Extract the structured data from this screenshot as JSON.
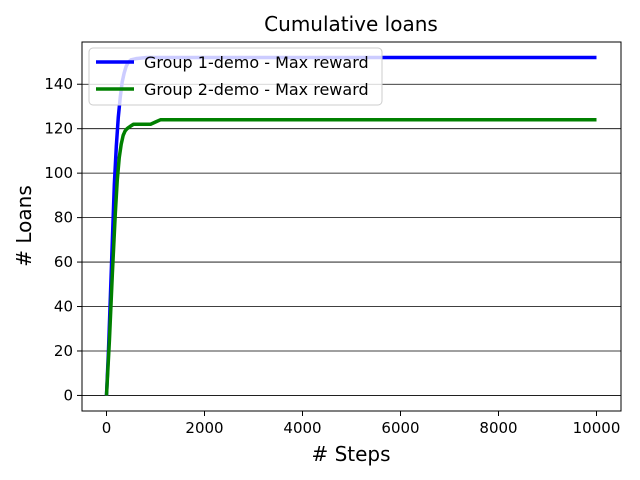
{
  "chart_data": {
    "type": "line",
    "title": "Cumulative loans",
    "xlabel": "# Steps",
    "ylabel": "# Loans",
    "xlim": [
      -500,
      10500
    ],
    "ylim": [
      -7,
      159
    ],
    "xticks": [
      0,
      2000,
      4000,
      6000,
      8000,
      10000
    ],
    "yticks": [
      0,
      20,
      40,
      60,
      80,
      100,
      120,
      140
    ],
    "grid": "horizontal",
    "legend_position": "top-left",
    "series": [
      {
        "name": "Group 1-demo - Max reward",
        "color": "#0000ff",
        "points": [
          [
            0,
            0
          ],
          [
            40,
            20
          ],
          [
            80,
            45
          ],
          [
            120,
            70
          ],
          [
            160,
            95
          ],
          [
            200,
            112
          ],
          [
            240,
            125
          ],
          [
            280,
            134
          ],
          [
            320,
            141
          ],
          [
            360,
            145
          ],
          [
            400,
            148
          ],
          [
            450,
            150
          ],
          [
            500,
            151
          ],
          [
            600,
            151.5
          ],
          [
            800,
            152
          ],
          [
            1000,
            152
          ],
          [
            2000,
            152
          ],
          [
            4000,
            152
          ],
          [
            6000,
            152
          ],
          [
            8000,
            152
          ],
          [
            10000,
            152
          ]
        ]
      },
      {
        "name": "Group 2-demo - Max reward",
        "color": "#008000",
        "points": [
          [
            0,
            0
          ],
          [
            60,
            25
          ],
          [
            120,
            55
          ],
          [
            180,
            82
          ],
          [
            220,
            97
          ],
          [
            260,
            107
          ],
          [
            300,
            113
          ],
          [
            340,
            117
          ],
          [
            380,
            119
          ],
          [
            420,
            120
          ],
          [
            480,
            121
          ],
          [
            550,
            122
          ],
          [
            700,
            122
          ],
          [
            900,
            122
          ],
          [
            1000,
            123
          ],
          [
            1100,
            124
          ],
          [
            2000,
            124
          ],
          [
            4000,
            124
          ],
          [
            6000,
            124
          ],
          [
            8000,
            124
          ],
          [
            10000,
            124
          ]
        ]
      }
    ]
  }
}
